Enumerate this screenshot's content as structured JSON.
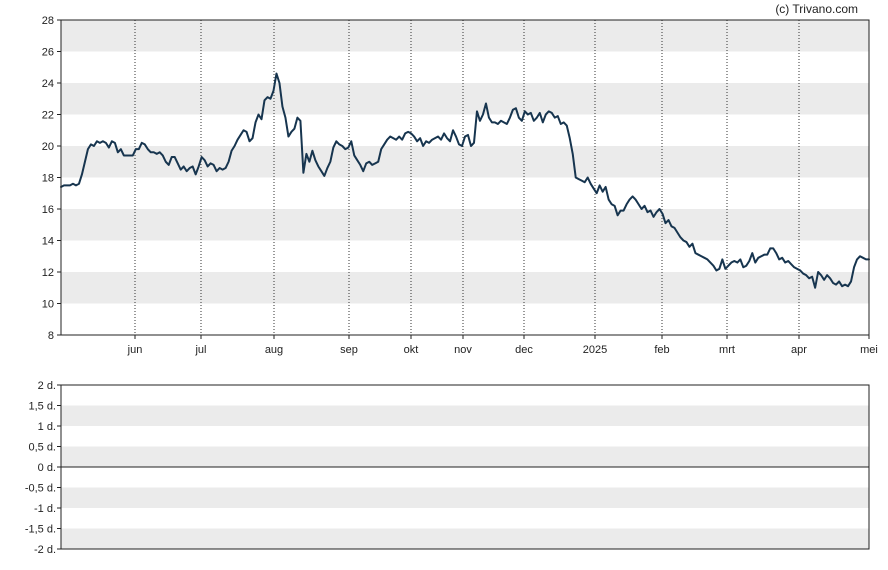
{
  "copyright": "(c) Trivano.com",
  "colors": {
    "line": "#17354f",
    "band": "#ebebeb",
    "grid_dots": "#333333",
    "frame": "#222222",
    "zero_line": "#222222"
  },
  "chart_data": [
    {
      "type": "line",
      "title": "",
      "xlabel": "",
      "ylabel": "",
      "ylim": [
        8,
        28
      ],
      "y_ticks": [
        "8",
        "10",
        "12",
        "14",
        "16",
        "18",
        "20",
        "22",
        "24",
        "26",
        "28"
      ],
      "x_ticks": [
        "jun",
        "jul",
        "aug",
        "sep",
        "okt",
        "nov",
        "dec",
        "2025",
        "feb",
        "mrt",
        "apr",
        "mei"
      ],
      "grid": "vertical dotted at months, horizontal alternating bands",
      "series": [
        {
          "values": [
            17.4,
            17.5,
            17.5,
            17.5,
            17.6,
            17.5,
            17.6,
            18.2,
            19.0,
            19.8,
            20.1,
            20.0,
            20.3,
            20.2,
            20.3,
            20.2,
            19.9,
            20.3,
            20.2,
            19.6,
            19.8,
            19.4,
            19.4,
            19.4,
            19.4,
            19.8,
            19.8,
            20.2,
            20.1,
            19.8,
            19.6,
            19.6,
            19.5,
            19.6,
            19.4,
            19.0,
            18.8,
            19.3,
            19.3,
            18.9,
            18.5,
            18.7,
            18.4,
            18.6,
            18.7,
            18.2,
            18.7,
            19.3,
            19.1,
            18.7,
            18.9,
            18.8,
            18.4,
            18.6,
            18.5,
            18.6,
            19.0,
            19.7,
            20.0,
            20.4,
            20.7,
            21.0,
            20.9,
            20.3,
            20.5,
            21.5,
            22.0,
            21.7,
            22.9,
            23.1,
            23.0,
            23.5,
            24.6,
            24.0,
            22.5,
            21.8,
            20.6,
            20.9,
            21.1,
            21.8,
            21.6,
            18.3,
            19.5,
            19.0,
            19.7,
            19.1,
            18.7,
            18.4,
            18.1,
            18.6,
            19.0,
            19.9,
            20.3,
            20.1,
            20.0,
            19.8,
            19.9,
            20.3,
            19.4,
            19.1,
            18.8,
            18.4,
            18.9,
            19.0,
            18.8,
            18.9,
            19.0,
            19.8,
            20.1,
            20.4,
            20.6,
            20.5,
            20.4,
            20.6,
            20.4,
            20.8,
            20.9,
            20.8,
            20.6,
            20.3,
            20.5,
            20.0,
            20.3,
            20.2,
            20.4,
            20.5,
            20.6,
            20.4,
            20.8,
            20.5,
            20.3,
            21.0,
            20.6,
            20.1,
            20.0,
            20.6,
            20.7,
            20.0,
            20.2,
            22.2,
            21.6,
            22.0,
            22.7,
            21.8,
            21.5,
            21.5,
            21.4,
            21.6,
            21.5,
            21.4,
            21.8,
            22.3,
            22.4,
            21.8,
            21.6,
            22.2,
            22.0,
            22.1,
            21.6,
            21.8,
            22.1,
            21.5,
            22.0,
            22.2,
            22.1,
            21.8,
            21.9,
            21.4,
            21.5,
            21.3,
            20.5,
            19.5,
            18.0,
            17.9,
            17.8,
            17.7,
            18.0,
            17.6,
            17.3,
            17.0,
            17.5,
            17.1,
            17.4,
            16.6,
            16.3,
            16.2,
            15.6,
            15.9,
            15.9,
            16.3,
            16.6,
            16.8,
            16.6,
            16.3,
            16.0,
            16.2,
            15.8,
            15.9,
            15.5,
            15.8,
            16.0,
            15.7,
            15.1,
            15.3,
            14.9,
            14.8,
            14.5,
            14.2,
            14.0,
            13.9,
            13.6,
            13.8,
            13.2,
            13.1,
            13.0,
            12.9,
            12.8,
            12.6,
            12.4,
            12.1,
            12.2,
            12.8,
            12.2,
            12.4,
            12.6,
            12.7,
            12.6,
            12.8,
            12.3,
            12.4,
            12.7,
            13.2,
            12.6,
            12.9,
            13.0,
            13.1,
            13.1,
            13.5,
            13.5,
            13.2,
            12.8,
            12.9,
            12.6,
            12.7,
            12.5,
            12.3,
            12.2,
            12.1,
            11.9,
            11.8,
            11.6,
            11.7,
            11.0,
            12.0,
            11.8,
            11.5,
            11.8,
            11.6,
            11.3,
            11.2,
            11.4,
            11.1,
            11.2,
            11.1,
            11.4,
            12.3,
            12.8,
            13.0,
            12.9,
            12.8,
            12.8
          ]
        }
      ]
    },
    {
      "type": "line",
      "title": "",
      "ylim": [
        -2,
        2
      ],
      "y_ticks": [
        "-2 d.",
        "-1,5 d.",
        "-1 d.",
        "-0,5 d.",
        "0 d.",
        "0,5 d.",
        "1 d.",
        "1,5 d.",
        "2 d."
      ],
      "series": []
    }
  ]
}
